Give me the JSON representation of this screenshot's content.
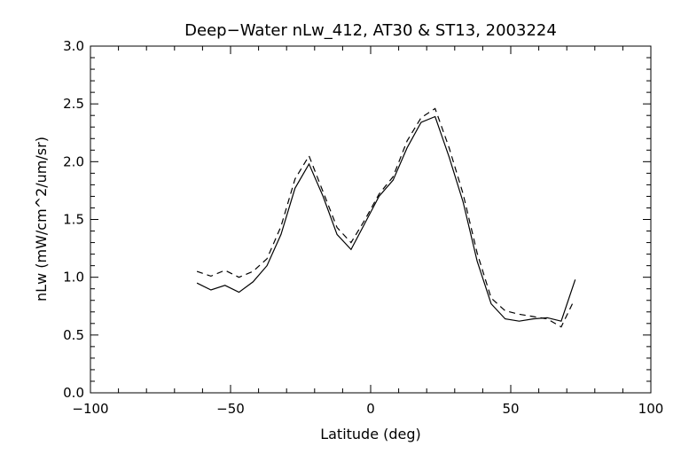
{
  "chart_data": {
    "type": "line",
    "title": "Deep−Water nLw_412, AT30 & ST13, 2003224",
    "xlabel": "Latitude (deg)",
    "ylabel": "nLw (mW/cm^2/um/sr)",
    "xlim": [
      -100,
      100
    ],
    "ylim": [
      0.0,
      3.0
    ],
    "xticks": [
      -100,
      -50,
      0,
      50,
      100
    ],
    "xtick_labels": [
      "−100",
      "−50",
      "0",
      "50",
      "100"
    ],
    "yticks": [
      0.0,
      0.5,
      1.0,
      1.5,
      2.0,
      2.5,
      3.0
    ],
    "ytick_labels": [
      "0.0",
      "0.5",
      "1.0",
      "1.5",
      "2.0",
      "2.5",
      "3.0"
    ],
    "grid": false,
    "series": [
      {
        "style": "solid",
        "x": [
          -62,
          -57,
          -52,
          -47,
          -42,
          -37,
          -32,
          -27,
          -22,
          -17,
          -12,
          -7,
          -2,
          3,
          8,
          13,
          18,
          23,
          28,
          33,
          38,
          43,
          48,
          53,
          58,
          63,
          68,
          73
        ],
        "y": [
          0.95,
          0.89,
          0.93,
          0.87,
          0.96,
          1.1,
          1.37,
          1.77,
          1.98,
          1.7,
          1.37,
          1.24,
          1.47,
          1.7,
          1.84,
          2.12,
          2.34,
          2.39,
          2.04,
          1.65,
          1.14,
          0.77,
          0.64,
          0.62,
          0.64,
          0.65,
          0.62,
          0.98
        ]
      },
      {
        "style": "dashed",
        "x": [
          -62,
          -57,
          -52,
          -47,
          -42,
          -37,
          -32,
          -27,
          -22,
          -17,
          -12,
          -7,
          -2,
          3,
          8,
          13,
          18,
          23,
          28,
          33,
          38,
          43,
          48,
          53,
          58,
          63,
          68,
          72
        ],
        "y": [
          1.05,
          1.01,
          1.06,
          1.0,
          1.05,
          1.16,
          1.44,
          1.85,
          2.05,
          1.74,
          1.43,
          1.3,
          1.5,
          1.72,
          1.87,
          2.18,
          2.38,
          2.46,
          2.12,
          1.72,
          1.21,
          0.82,
          0.71,
          0.68,
          0.66,
          0.64,
          0.57,
          0.77
        ]
      }
    ]
  }
}
